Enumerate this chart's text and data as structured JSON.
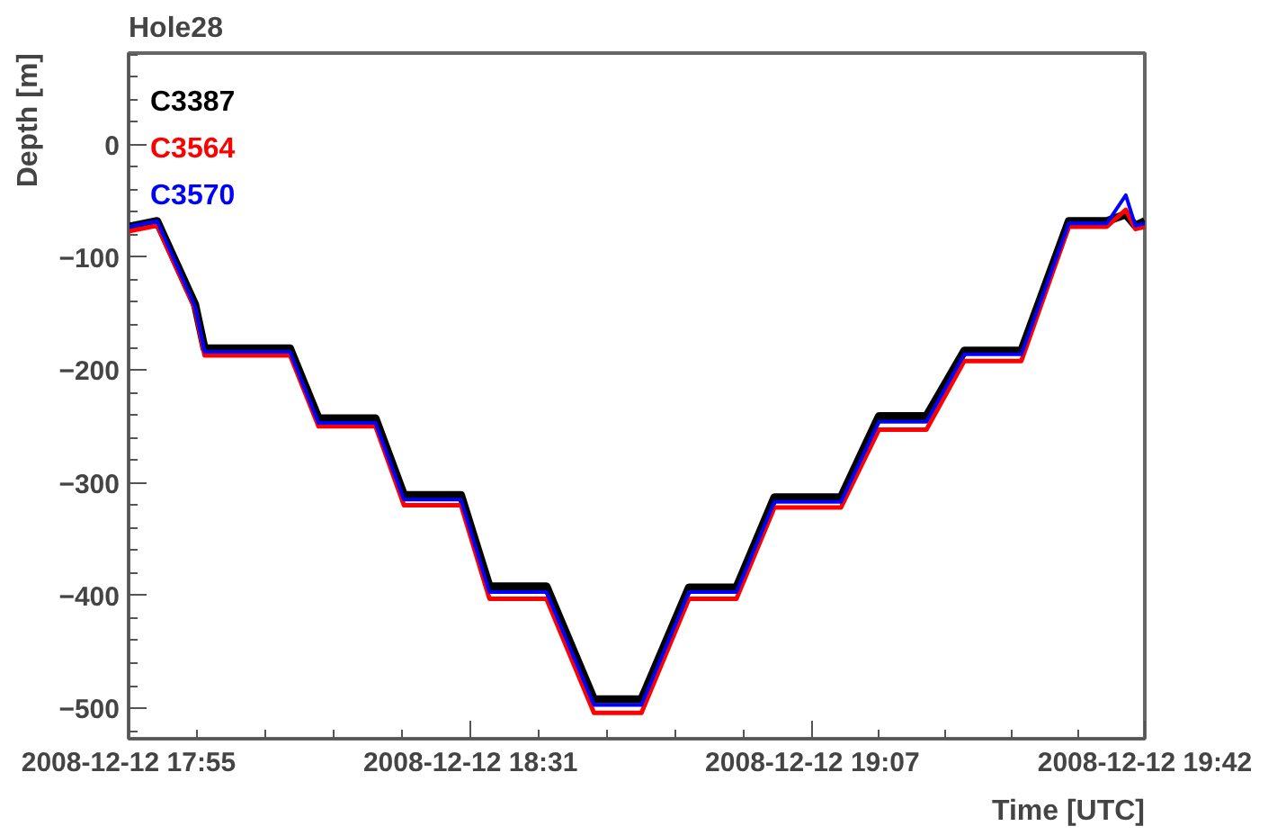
{
  "chart_data": {
    "type": "line",
    "title": "Hole28",
    "xlabel": "Time [UTC]",
    "ylabel": "Depth [m]",
    "x": [
      "2008-12-12T17:55",
      "2008-12-12T17:58",
      "2008-12-12T18:02",
      "2008-12-12T18:03",
      "2008-12-12T18:12",
      "2008-12-12T18:15",
      "2008-12-12T18:21",
      "2008-12-12T18:24",
      "2008-12-12T18:30",
      "2008-12-12T18:33",
      "2008-12-12T18:39",
      "2008-12-12T18:44",
      "2008-12-12T18:49",
      "2008-12-12T18:54",
      "2008-12-12T18:59",
      "2008-12-12T19:03",
      "2008-12-12T19:10",
      "2008-12-12T19:14",
      "2008-12-12T19:19",
      "2008-12-12T19:23",
      "2008-12-12T19:29",
      "2008-12-12T19:34",
      "2008-12-12T19:38",
      "2008-12-12T19:40",
      "2008-12-12T19:41",
      "2008-12-12T19:42"
    ],
    "series": [
      {
        "name": "C3387",
        "color": "#000000",
        "values": [
          -73,
          -68,
          -142,
          -181,
          -181,
          -243,
          -243,
          -311,
          -311,
          -392,
          -392,
          -492,
          -492,
          -393,
          -393,
          -313,
          -313,
          -241,
          -241,
          -183,
          -183,
          -68,
          -68,
          -62,
          -72,
          -68
        ]
      },
      {
        "name": "C3564",
        "color": "#ff0000",
        "values": [
          -77,
          -72,
          -146,
          -187,
          -187,
          -250,
          -250,
          -320,
          -320,
          -403,
          -403,
          -504,
          -504,
          -403,
          -403,
          -322,
          -322,
          -253,
          -253,
          -192,
          -192,
          -73,
          -73,
          -58,
          -75,
          -73
        ]
      },
      {
        "name": "C3570",
        "color": "#0000ff",
        "values": [
          -73,
          -68,
          -144,
          -184,
          -184,
          -247,
          -247,
          -315,
          -315,
          -397,
          -397,
          -497,
          -497,
          -397,
          -397,
          -317,
          -317,
          -246,
          -246,
          -186,
          -186,
          -70,
          -70,
          -45,
          -72,
          -70
        ]
      }
    ],
    "xlim": [
      "2008-12-12T17:55",
      "2008-12-12T19:42"
    ],
    "ylim": [
      -527,
      81
    ],
    "xticks": [
      {
        "value": "2008-12-12T17:55",
        "label": "2008-12-12 17:55"
      },
      {
        "value": "2008-12-12T18:31",
        "label": "2008-12-12 18:31"
      },
      {
        "value": "2008-12-12T19:07",
        "label": "2008-12-12 19:07"
      },
      {
        "value": "2008-12-12T19:42",
        "label": "2008-12-12 19:42"
      }
    ],
    "yticks": [
      -500,
      -400,
      -300,
      -200,
      -100,
      0
    ],
    "grid": false,
    "legend": "top left",
    "marker": "none",
    "line_style": "solid"
  }
}
